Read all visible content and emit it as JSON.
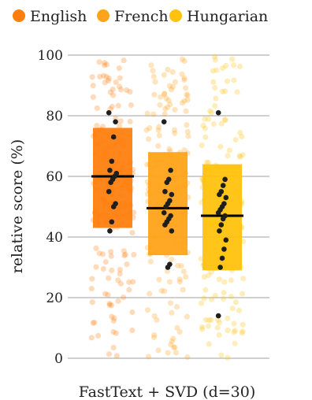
{
  "chart_data": {
    "type": "box",
    "title": "",
    "xlabel": "FastText + SVD (d=30)",
    "ylabel": "relative score (%)",
    "ylim": [
      0,
      100
    ],
    "yticks": [
      0,
      20,
      40,
      60,
      80,
      100
    ],
    "grid": true,
    "legend_position": "top",
    "series": [
      {
        "name": "English",
        "color": "#ff7f0e",
        "q1": 43,
        "median": 60,
        "q3": 76,
        "highlighted_points": [
          81,
          78,
          73,
          65,
          62,
          61,
          60,
          59,
          58,
          55,
          51,
          50,
          45,
          42
        ]
      },
      {
        "name": "French",
        "color": "#ffa31a",
        "q1": 34,
        "median": 49.5,
        "q3": 68,
        "highlighted_points": [
          78,
          62,
          59,
          58,
          55,
          54,
          52,
          51,
          50,
          48,
          47,
          46,
          45,
          44,
          42,
          31,
          30
        ]
      },
      {
        "name": "Hungarian",
        "color": "#ffc20e",
        "q1": 29,
        "median": 47,
        "q3": 64,
        "highlighted_points": [
          81,
          59,
          57,
          55,
          54,
          53,
          51,
          50,
          49,
          48,
          47,
          46,
          44,
          42,
          39,
          36,
          33,
          30,
          14
        ]
      }
    ]
  }
}
